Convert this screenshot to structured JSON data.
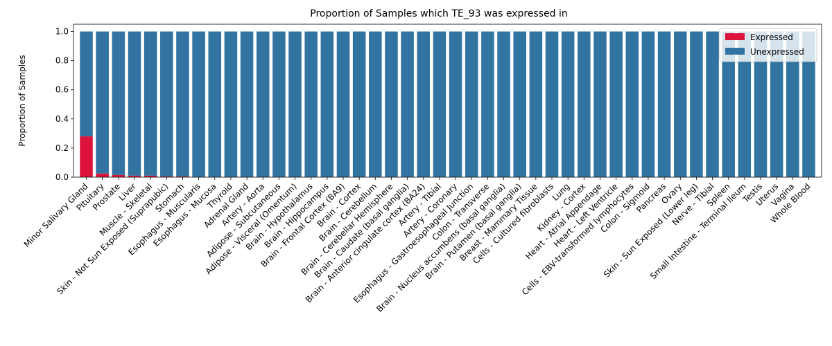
{
  "chart_data": {
    "type": "bar",
    "stacked": true,
    "title": "Proportion of Samples which TE_93 was expressed in",
    "xlabel": "",
    "ylabel": "Proportion of Samples",
    "ylim": [
      0,
      1.05
    ],
    "yticks": [
      "0.0",
      "0.2",
      "0.4",
      "0.6",
      "0.8",
      "1.0"
    ],
    "grid": false,
    "legend_position": "top-right",
    "categories": [
      "Minor Salivary Gland",
      "Pituitary",
      "Prostate",
      "Liver",
      "Muscle - Skeletal",
      "Skin - Not Sun Exposed (Suprapubic)",
      "Stomach",
      "Esophagus - Muscularis",
      "Esophagus - Mucosa",
      "Thyroid",
      "Adrenal Gland",
      "Artery - Aorta",
      "Adipose - Subcutaneous",
      "Adipose - Visceral (Omentum)",
      "Brain - Hypothalamus",
      "Brain - Hippocampus",
      "Brain - Frontal Cortex (BA9)",
      "Brain - Cortex",
      "Brain - Cerebellum",
      "Brain - Cerebellar Hemisphere",
      "Brain - Caudate (basal ganglia)",
      "Brain - Anterior cingulate cortex (BA24)",
      "Artery - Tibial",
      "Artery - Coronary",
      "Esophagus - Gastroesophageal Junction",
      "Colon - Transverse",
      "Brain - Nucleus accumbens (basal ganglia)",
      "Brain - Putamen (basal ganglia)",
      "Breast - Mammary Tissue",
      "Cells - Cultured fibroblasts",
      "Lung",
      "Kidney - Cortex",
      "Heart - Atrial Appendage",
      "Heart - Left Ventricle",
      "Cells - EBV-transformed lymphocytes",
      "Colon - Sigmoid",
      "Pancreas",
      "Ovary",
      "Skin - Sun Exposed (Lower leg)",
      "Nerve - Tibial",
      "Spleen",
      "Small Intestine - Terminal Ileum",
      "Testis",
      "Uterus",
      "Vagina",
      "Whole Blood"
    ],
    "series": [
      {
        "name": "Expressed",
        "color": "#dc143c",
        "values": [
          0.28,
          0.025,
          0.015,
          0.01,
          0.01,
          0.005,
          0.005,
          0,
          0,
          0,
          0,
          0,
          0,
          0,
          0,
          0,
          0,
          0,
          0,
          0,
          0,
          0,
          0,
          0,
          0,
          0,
          0,
          0,
          0,
          0,
          0,
          0,
          0,
          0,
          0,
          0,
          0,
          0,
          0,
          0,
          0,
          0,
          0,
          0,
          0,
          0
        ]
      },
      {
        "name": "Unexpressed",
        "color": "#3274a1",
        "values": [
          0.72,
          0.975,
          0.985,
          0.99,
          0.99,
          0.995,
          0.995,
          1,
          1,
          1,
          1,
          1,
          1,
          1,
          1,
          1,
          1,
          1,
          1,
          1,
          1,
          1,
          1,
          1,
          1,
          1,
          1,
          1,
          1,
          1,
          1,
          1,
          1,
          1,
          1,
          1,
          1,
          1,
          1,
          1,
          1,
          1,
          1,
          1,
          1,
          1
        ]
      }
    ]
  }
}
